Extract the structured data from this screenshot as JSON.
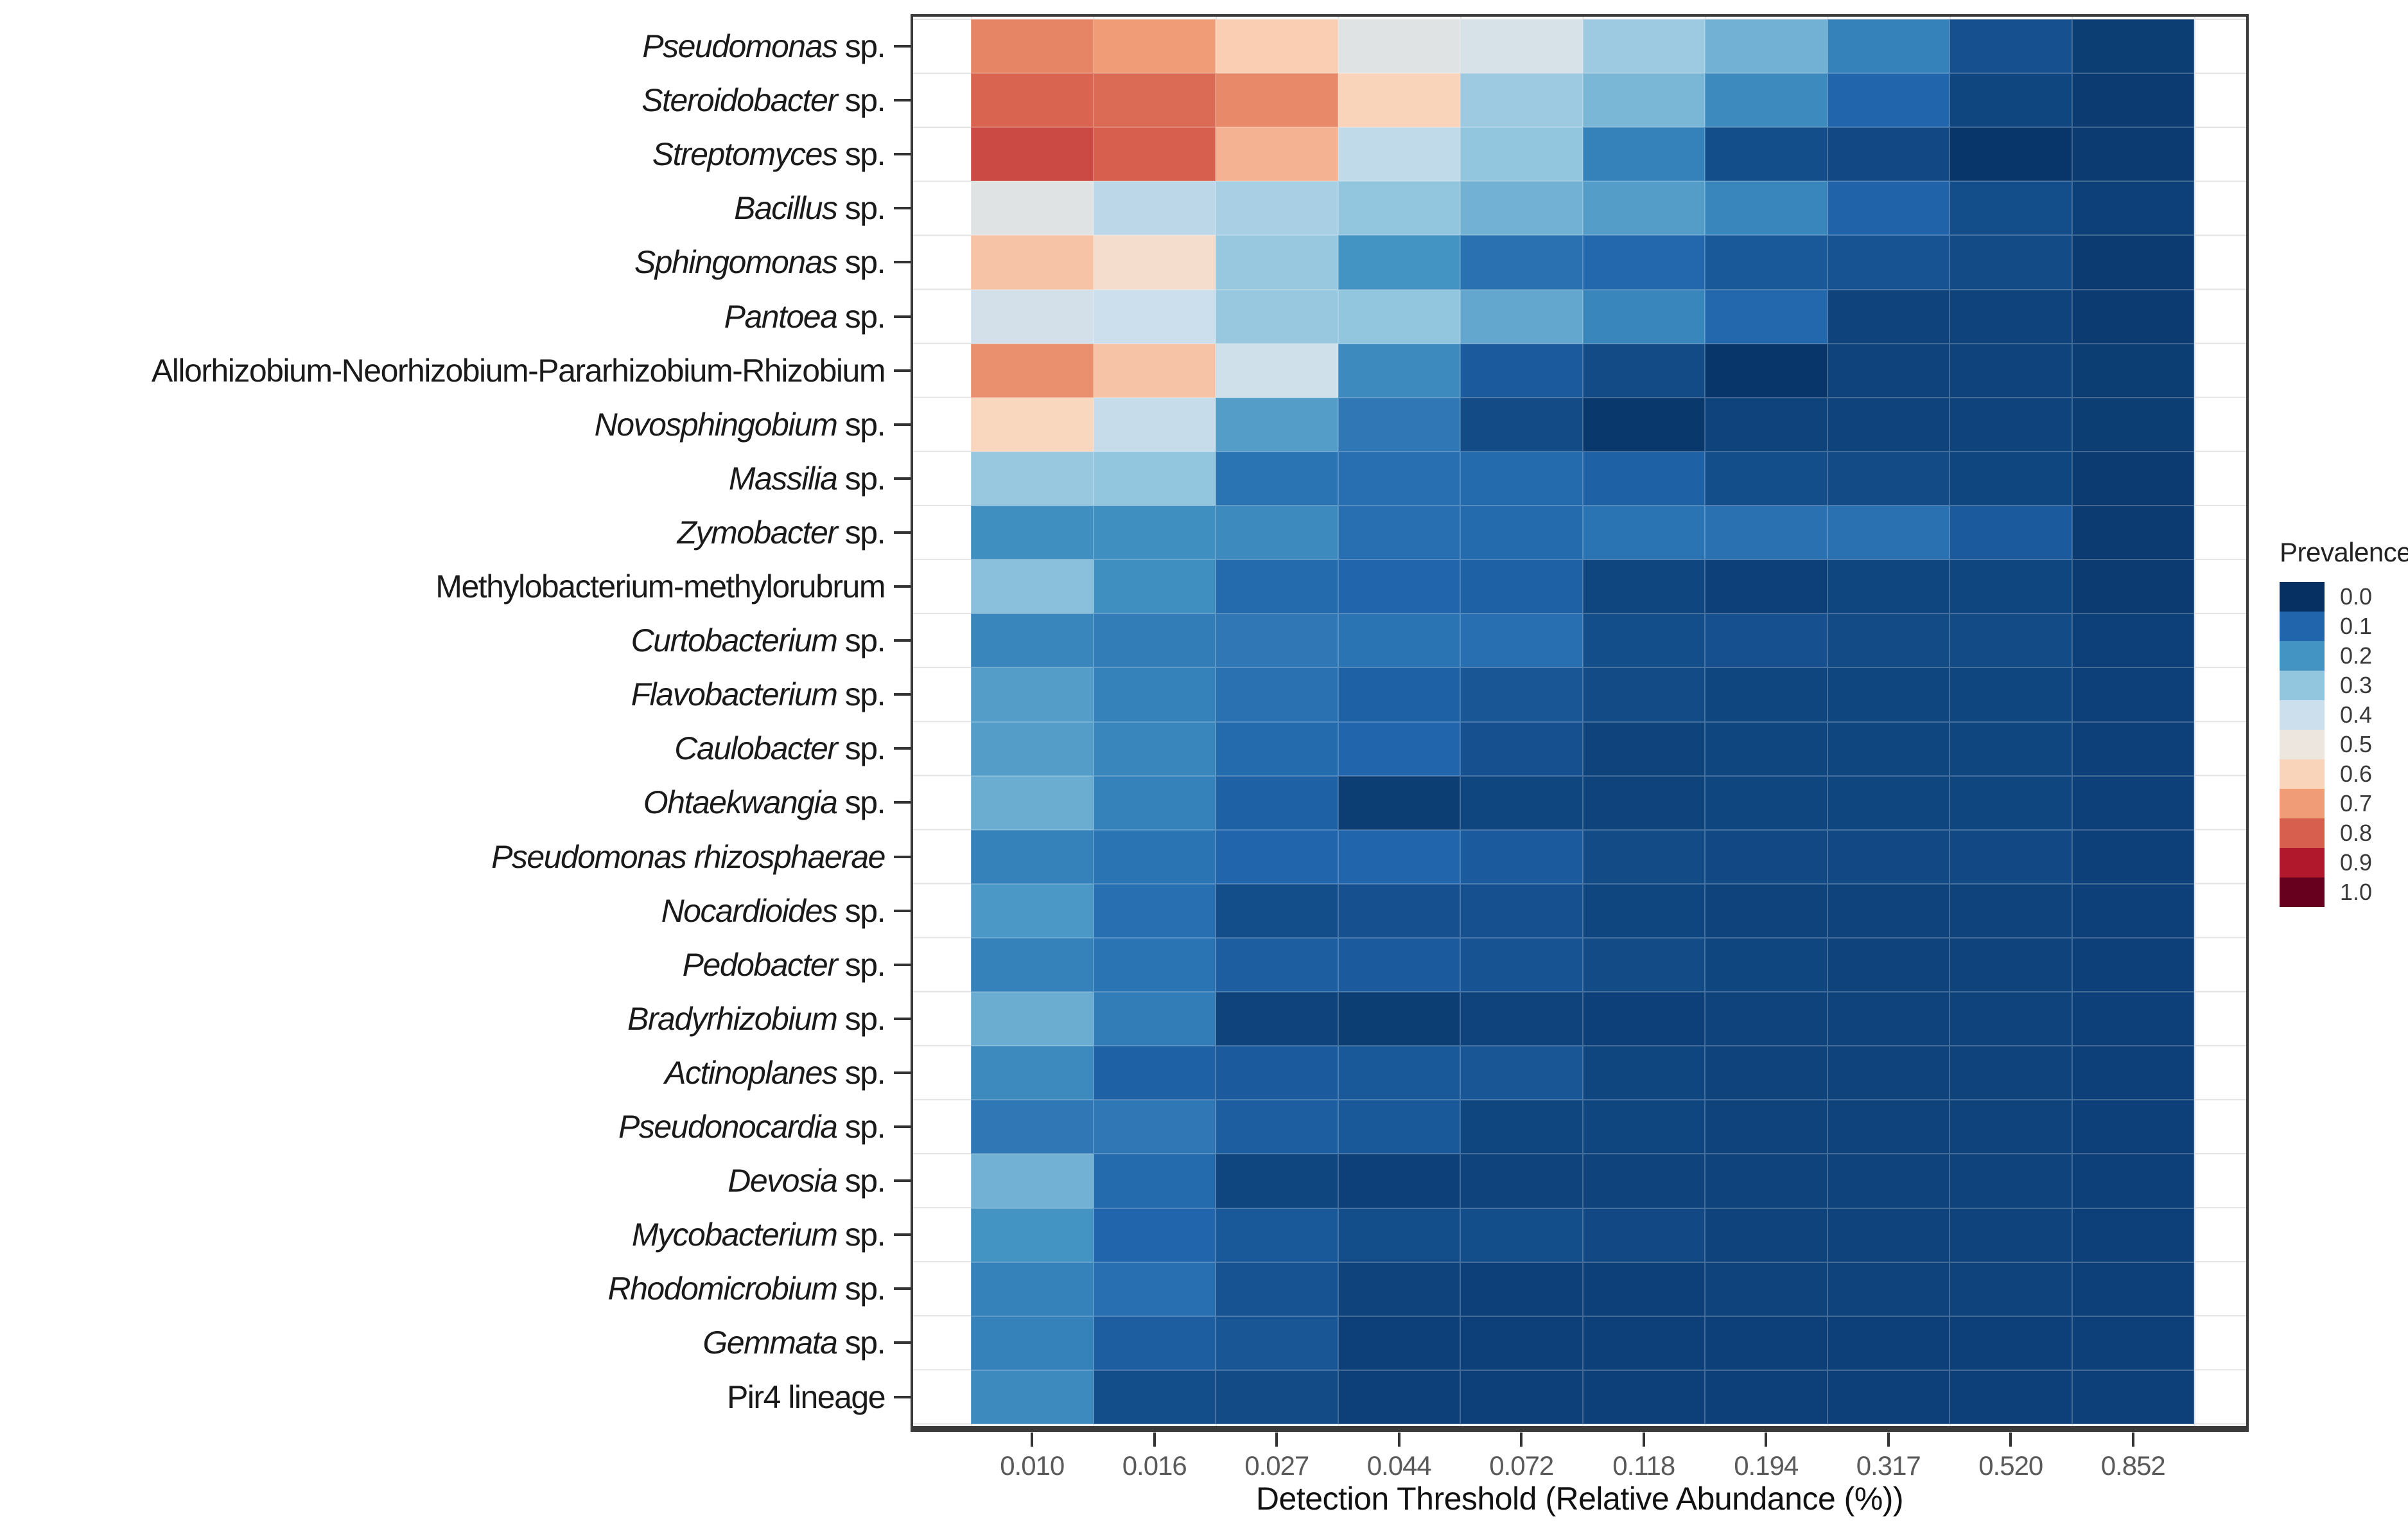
{
  "chart_data": {
    "type": "heatmap",
    "title": "",
    "xlabel": "Detection Threshold (Relative Abundance (%))",
    "ylabel": "",
    "legend": {
      "title": "Prevalence",
      "position": "right",
      "entries": [
        {
          "label": "0.0",
          "color": "#053061"
        },
        {
          "label": "0.1",
          "color": "#2166AC"
        },
        {
          "label": "0.2",
          "color": "#4393C3"
        },
        {
          "label": "0.3",
          "color": "#92C5DE"
        },
        {
          "label": "0.4",
          "color": "#CCDFEC"
        },
        {
          "label": "0.5",
          "color": "#EDE6DF"
        },
        {
          "label": "0.6",
          "color": "#FAD4BA"
        },
        {
          "label": "0.7",
          "color": "#F09C77"
        },
        {
          "label": "0.8",
          "color": "#D65F4D"
        },
        {
          "label": "0.9",
          "color": "#B2182B"
        },
        {
          "label": "1.0",
          "color": "#67001F"
        }
      ]
    },
    "colorscale": {
      "name": "RdBu-reversed",
      "stops": [
        {
          "value": 0.0,
          "color": "#053061"
        },
        {
          "value": 0.1,
          "color": "#2166AC"
        },
        {
          "value": 0.2,
          "color": "#4393C3"
        },
        {
          "value": 0.3,
          "color": "#92C5DE"
        },
        {
          "value": 0.4,
          "color": "#CCDFEC"
        },
        {
          "value": 0.5,
          "color": "#EDE6DF"
        },
        {
          "value": 0.6,
          "color": "#FAD4BA"
        },
        {
          "value": 0.7,
          "color": "#F09C77"
        },
        {
          "value": 0.8,
          "color": "#D65F4D"
        },
        {
          "value": 0.9,
          "color": "#B2182B"
        },
        {
          "value": 1.0,
          "color": "#67001F"
        }
      ]
    },
    "value_range": [
      0,
      1
    ],
    "grid": true,
    "x_categories": [
      "0.010",
      "0.016",
      "0.027",
      "0.044",
      "0.072",
      "0.118",
      "0.194",
      "0.317",
      "0.520",
      "0.852"
    ],
    "rows": [
      {
        "italic_part": "Pseudomonas",
        "plain_part": " sp.",
        "values": [
          0.74,
          0.7,
          0.61,
          0.46,
          0.43,
          0.32,
          0.26,
          0.16,
          0.06,
          0.025
        ]
      },
      {
        "italic_part": "Steroidobacter",
        "plain_part": " sp.",
        "values": [
          0.79,
          0.78,
          0.73,
          0.6,
          0.32,
          0.27,
          0.18,
          0.1,
          0.04,
          0.02
        ]
      },
      {
        "italic_part": "Streptomyces",
        "plain_part": " sp.",
        "values": [
          0.83,
          0.8,
          0.66,
          0.38,
          0.3,
          0.16,
          0.055,
          0.045,
          0.012,
          0.02
        ]
      },
      {
        "italic_part": "Bacillus",
        "plain_part": " sp.",
        "values": [
          0.46,
          0.37,
          0.34,
          0.3,
          0.26,
          0.22,
          0.17,
          0.095,
          0.055,
          0.03
        ]
      },
      {
        "italic_part": "Sphingomonas",
        "plain_part": " sp.",
        "values": [
          0.63,
          0.55,
          0.31,
          0.2,
          0.125,
          0.105,
          0.075,
          0.065,
          0.05,
          0.02
        ]
      },
      {
        "italic_part": "Pantoea",
        "plain_part": " sp.",
        "values": [
          0.42,
          0.4,
          0.31,
          0.3,
          0.24,
          0.17,
          0.105,
          0.035,
          0.035,
          0.02
        ]
      },
      {
        "italic_part": "",
        "plain_part": "Allorhizobium-Neorhizobium-Pararhizobium-Rhizobium",
        "values": [
          0.72,
          0.63,
          0.41,
          0.18,
          0.08,
          0.05,
          0.012,
          0.035,
          0.035,
          0.025
        ]
      },
      {
        "italic_part": "Novosphingobium",
        "plain_part": " sp.",
        "values": [
          0.59,
          0.39,
          0.22,
          0.14,
          0.05,
          0.015,
          0.035,
          0.035,
          0.035,
          0.025
        ]
      },
      {
        "italic_part": "Massilia",
        "plain_part": " sp.",
        "values": [
          0.31,
          0.3,
          0.13,
          0.12,
          0.11,
          0.09,
          0.055,
          0.05,
          0.04,
          0.02
        ]
      },
      {
        "italic_part": "Zymobacter",
        "plain_part": " sp.",
        "values": [
          0.19,
          0.19,
          0.18,
          0.12,
          0.11,
          0.13,
          0.125,
          0.125,
          0.08,
          0.02
        ]
      },
      {
        "italic_part": "",
        "plain_part": "Methylobacterium-methylorubrum",
        "values": [
          0.29,
          0.19,
          0.11,
          0.1,
          0.09,
          0.04,
          0.03,
          0.04,
          0.04,
          0.02
        ]
      },
      {
        "italic_part": "Curtobacterium",
        "plain_part": " sp.",
        "values": [
          0.17,
          0.15,
          0.14,
          0.13,
          0.12,
          0.055,
          0.06,
          0.05,
          0.05,
          0.03
        ]
      },
      {
        "italic_part": "Flavobacterium",
        "plain_part": " sp.",
        "values": [
          0.22,
          0.16,
          0.125,
          0.09,
          0.07,
          0.05,
          0.04,
          0.04,
          0.04,
          0.03
        ]
      },
      {
        "italic_part": "Caulobacter",
        "plain_part": " sp.",
        "values": [
          0.22,
          0.17,
          0.11,
          0.1,
          0.06,
          0.035,
          0.04,
          0.04,
          0.04,
          0.03
        ]
      },
      {
        "italic_part": "Ohtaekwangia",
        "plain_part": " sp.",
        "values": [
          0.25,
          0.16,
          0.09,
          0.025,
          0.04,
          0.035,
          0.04,
          0.04,
          0.04,
          0.03
        ]
      },
      {
        "italic_part": "Pseudomonas rhizosphaerae",
        "plain_part": "",
        "values": [
          0.16,
          0.13,
          0.1,
          0.1,
          0.08,
          0.05,
          0.045,
          0.045,
          0.045,
          0.03
        ]
      },
      {
        "italic_part": "Nocardioides",
        "plain_part": " sp.",
        "values": [
          0.21,
          0.12,
          0.055,
          0.06,
          0.06,
          0.04,
          0.035,
          0.035,
          0.035,
          0.03
        ]
      },
      {
        "italic_part": "Pedobacter",
        "plain_part": " sp.",
        "values": [
          0.16,
          0.13,
          0.085,
          0.08,
          0.065,
          0.05,
          0.04,
          0.035,
          0.035,
          0.03
        ]
      },
      {
        "italic_part": "Bradyrhizobium",
        "plain_part": " sp.",
        "values": [
          0.25,
          0.15,
          0.035,
          0.025,
          0.035,
          0.03,
          0.035,
          0.035,
          0.035,
          0.03
        ]
      },
      {
        "italic_part": "Actinoplanes",
        "plain_part": " sp.",
        "values": [
          0.18,
          0.09,
          0.08,
          0.075,
          0.07,
          0.04,
          0.035,
          0.035,
          0.035,
          0.03
        ]
      },
      {
        "italic_part": "Pseudonocardia",
        "plain_part": " sp.",
        "values": [
          0.14,
          0.14,
          0.085,
          0.075,
          0.04,
          0.04,
          0.035,
          0.035,
          0.035,
          0.03
        ]
      },
      {
        "italic_part": "Devosia",
        "plain_part": " sp.",
        "values": [
          0.26,
          0.11,
          0.04,
          0.03,
          0.035,
          0.035,
          0.035,
          0.035,
          0.035,
          0.03
        ]
      },
      {
        "italic_part": "Mycobacterium",
        "plain_part": " sp.",
        "values": [
          0.2,
          0.1,
          0.075,
          0.055,
          0.055,
          0.045,
          0.035,
          0.035,
          0.035,
          0.03
        ]
      },
      {
        "italic_part": "Rhodomicrobium",
        "plain_part": " sp.",
        "values": [
          0.16,
          0.12,
          0.065,
          0.035,
          0.03,
          0.03,
          0.035,
          0.035,
          0.035,
          0.03
        ]
      },
      {
        "italic_part": "Gemmata",
        "plain_part": " sp.",
        "values": [
          0.16,
          0.085,
          0.07,
          0.03,
          0.03,
          0.03,
          0.03,
          0.03,
          0.03,
          0.03
        ]
      },
      {
        "italic_part": "",
        "plain_part": "Pir4 lineage",
        "values": [
          0.18,
          0.055,
          0.05,
          0.03,
          0.03,
          0.03,
          0.03,
          0.03,
          0.03,
          0.03
        ]
      }
    ]
  }
}
